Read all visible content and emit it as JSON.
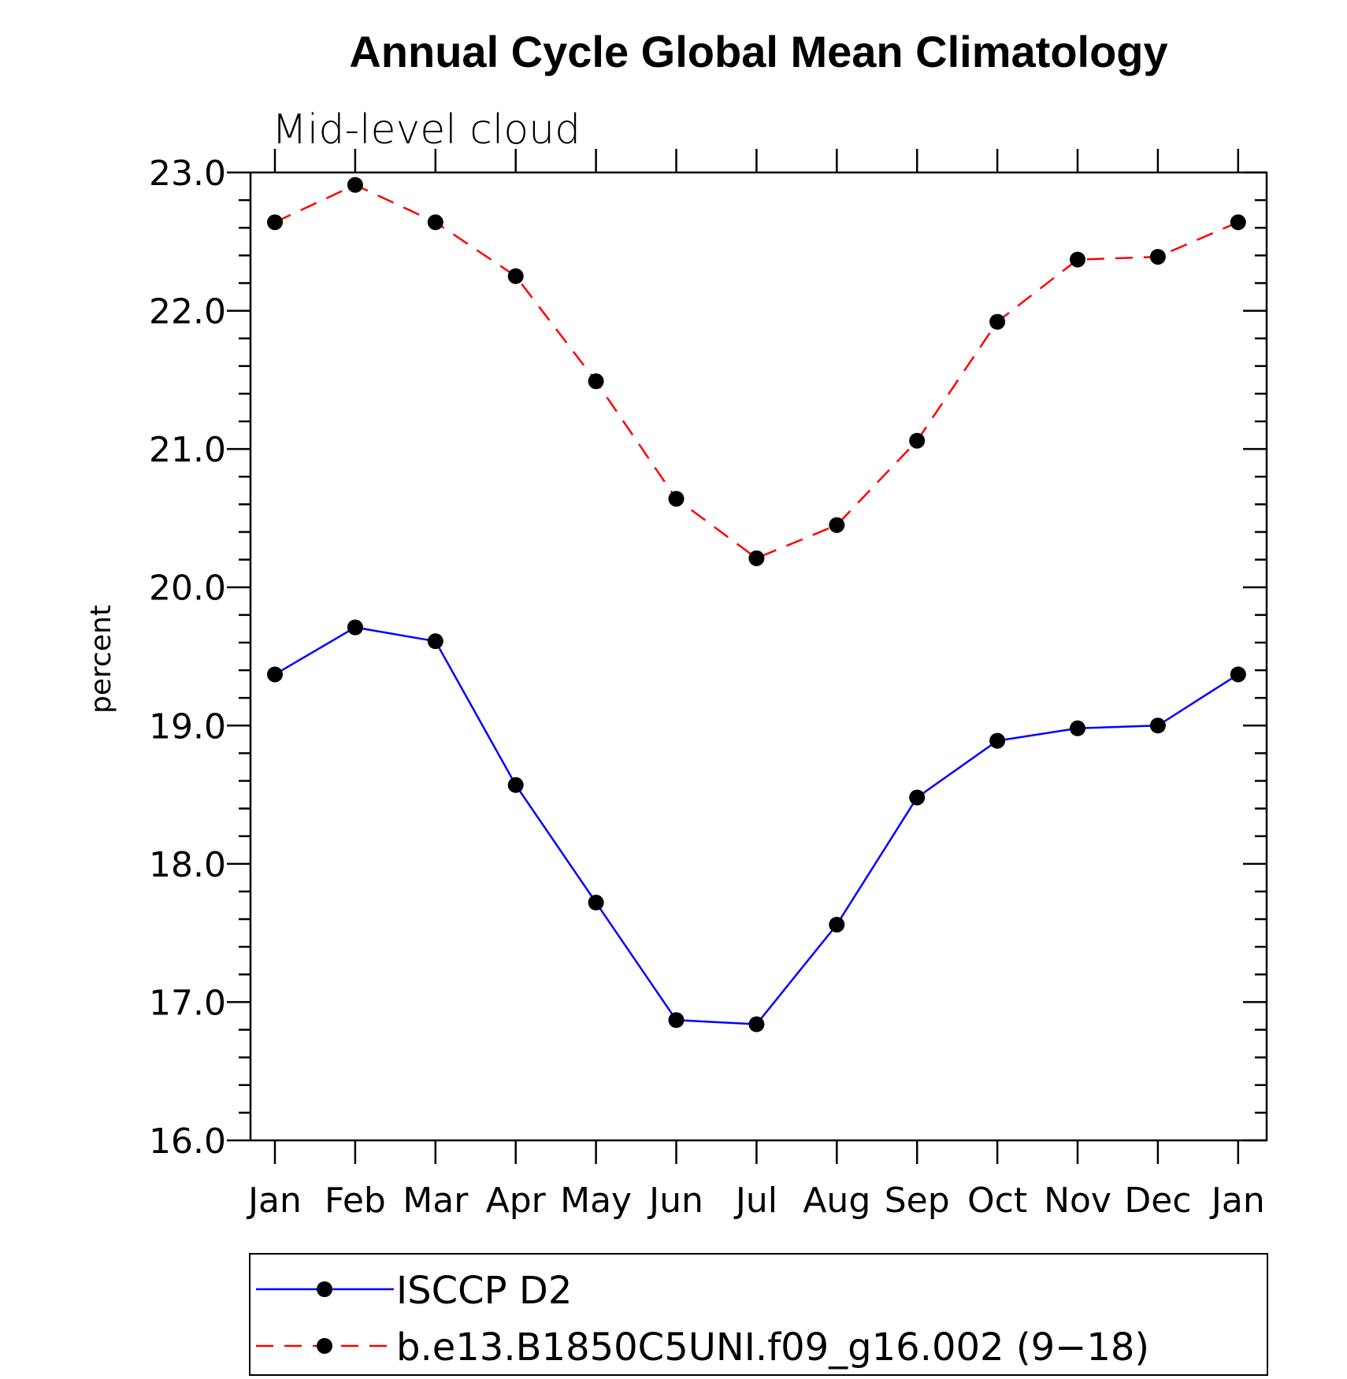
{
  "chart_data": {
    "type": "line",
    "title": "Annual Cycle Global Mean Climatology",
    "subtitle": "Mid-level cloud",
    "xlabel": "",
    "ylabel": "percent",
    "categories": [
      "Jan",
      "Feb",
      "Mar",
      "Apr",
      "May",
      "Jun",
      "Jul",
      "Aug",
      "Sep",
      "Oct",
      "Nov",
      "Dec",
      "Jan"
    ],
    "ylim": [
      16.0,
      23.0
    ],
    "yticks": [
      "16.0",
      "17.0",
      "18.0",
      "19.0",
      "20.0",
      "21.0",
      "22.0",
      "23.0"
    ],
    "grid": false,
    "legend_position": "bottom",
    "series": [
      {
        "name": "ISCCP D2",
        "color": "#0000ff",
        "line_style": "solid",
        "marker": "filled-circle",
        "values": [
          19.37,
          19.71,
          19.61,
          18.57,
          17.72,
          16.87,
          16.84,
          17.56,
          18.48,
          18.89,
          18.98,
          19.0,
          19.37
        ]
      },
      {
        "name": "b.e13.B1850C5UNI.f09_g16.002 (9−18)",
        "color": "#ff0000",
        "line_style": "dashed",
        "marker": "filled-circle",
        "values": [
          22.64,
          22.91,
          22.64,
          22.25,
          21.49,
          20.64,
          20.21,
          20.45,
          21.06,
          21.92,
          22.37,
          22.39,
          22.64
        ]
      }
    ]
  }
}
